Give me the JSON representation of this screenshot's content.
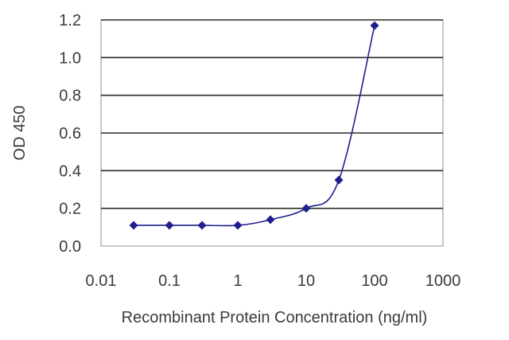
{
  "chart_data": {
    "type": "line",
    "title": "",
    "xlabel": "Recombinant Protein Concentration (ng/ml)",
    "ylabel": "OD 450",
    "x_scale": "log",
    "xlim": [
      0.01,
      1000
    ],
    "ylim": [
      0,
      1.2
    ],
    "x_ticks": [
      "0.01",
      "0.1",
      "1",
      "10",
      "100",
      "1000"
    ],
    "y_ticks": [
      "0.0",
      "0.2",
      "0.4",
      "0.6",
      "0.8",
      "1.0",
      "1.2"
    ],
    "grid": "horizontal",
    "legend": "none",
    "series": [
      {
        "x": [
          0.03,
          0.1,
          0.3,
          1,
          3,
          10,
          30,
          100
        ],
        "y": [
          0.11,
          0.11,
          0.11,
          0.11,
          0.14,
          0.2,
          0.35,
          1.17
        ]
      }
    ],
    "colors": {
      "series": "#1f1f8f",
      "grid": "#2a2a2a",
      "axis": "#8c8c8c",
      "text": "#3a3a3a"
    }
  }
}
